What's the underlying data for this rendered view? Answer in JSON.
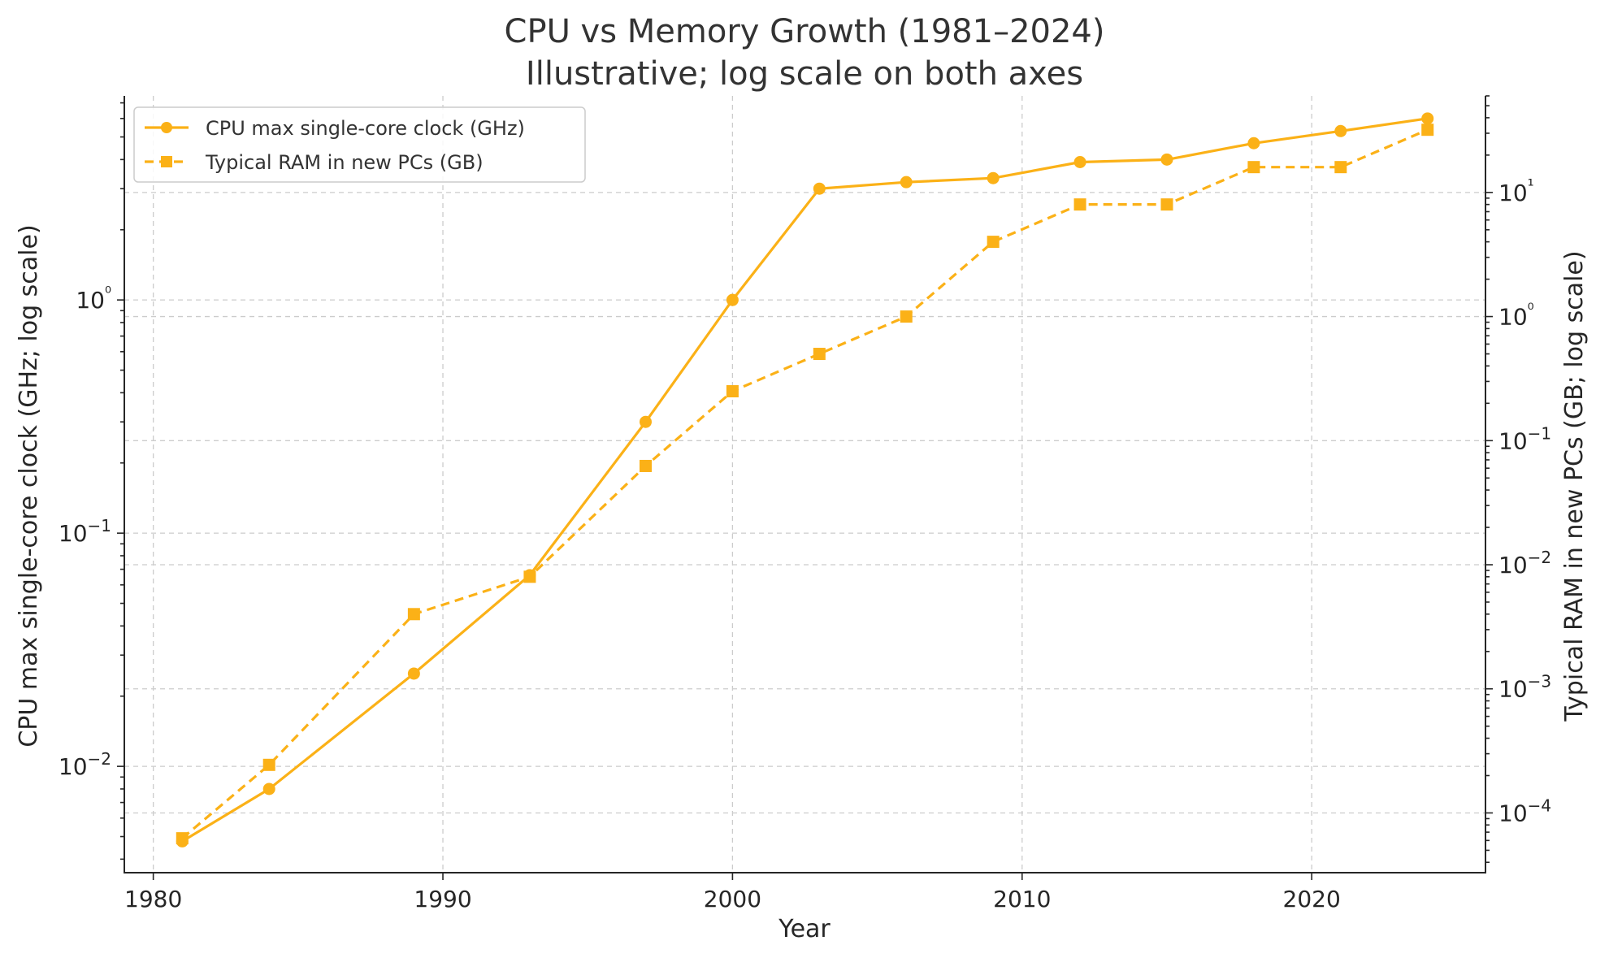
{
  "chart_data": {
    "type": "line",
    "title": "CPU vs Memory Growth (1981–2024)",
    "subtitle": "Illustrative; log scale on both axes",
    "xlabel": "Year",
    "ylabel_left": "CPU max single-core clock (GHz; log scale)",
    "ylabel_right": "Typical RAM in new PCs (GB; log scale)",
    "x_ticks": [
      1980,
      1990,
      2000,
      2010,
      2020
    ],
    "xlim": [
      1979,
      2026
    ],
    "ylim_left": [
      0.0035,
      7.5
    ],
    "ylim_right": [
      3.3e-05,
      60
    ],
    "left_ticks": [
      {
        "value": 0.01,
        "label": "10−2"
      },
      {
        "value": 0.1,
        "label": "10−1"
      },
      {
        "value": 1,
        "label": "10⁰"
      }
    ],
    "right_ticks": [
      {
        "value": 0.0001,
        "label": "10−4"
      },
      {
        "value": 0.001,
        "label": "10−3"
      },
      {
        "value": 0.01,
        "label": "10−2"
      },
      {
        "value": 0.1,
        "label": "10−1"
      },
      {
        "value": 1,
        "label": "10⁰"
      },
      {
        "value": 10,
        "label": "10¹"
      }
    ],
    "legend_position": "top-left",
    "grid": true,
    "series": [
      {
        "name": "CPU max single-core clock (GHz)",
        "axis": "left",
        "color": "#fbb117",
        "style": "solid",
        "marker": "circle",
        "x": [
          1981,
          1984,
          1989,
          1993,
          1997,
          2000,
          2003,
          2006,
          2009,
          2012,
          2015,
          2018,
          2021,
          2024
        ],
        "values": [
          0.00477,
          0.008,
          0.025,
          0.066,
          0.3,
          1.0,
          3.0,
          3.2,
          3.33,
          3.9,
          4.0,
          4.7,
          5.3,
          6.0
        ]
      },
      {
        "name": "Typical RAM in new PCs (GB)",
        "axis": "right",
        "color": "#fbb117",
        "style": "dashed",
        "marker": "square",
        "x": [
          1981,
          1984,
          1989,
          1993,
          1997,
          2000,
          2003,
          2006,
          2009,
          2012,
          2015,
          2018,
          2021,
          2024
        ],
        "values": [
          6.25e-05,
          0.000244,
          0.004,
          0.008,
          0.0625,
          0.25,
          0.5,
          1,
          4,
          8,
          8,
          16,
          16,
          32
        ]
      }
    ]
  }
}
